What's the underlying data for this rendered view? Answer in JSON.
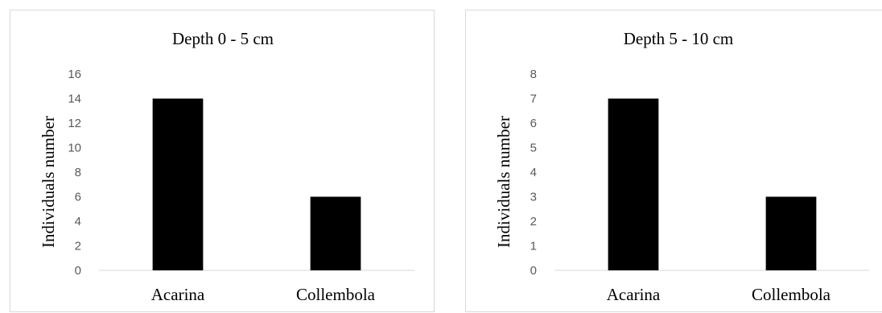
{
  "chart_data": [
    {
      "type": "bar",
      "title": "Depth 0 - 5 cm",
      "xlabel": "",
      "ylabel": "Individuals number",
      "categories": [
        "Acarina",
        "Collembola"
      ],
      "values": [
        14,
        6
      ],
      "ylim": [
        0,
        16
      ],
      "yticks": [
        0,
        2,
        4,
        6,
        8,
        10,
        12,
        14,
        16
      ],
      "grid": false,
      "bar_color": "#000000"
    },
    {
      "type": "bar",
      "title": "Depth 5 - 10 cm",
      "xlabel": "",
      "ylabel": "Individuals number",
      "categories": [
        "Acarina",
        "Collembola"
      ],
      "values": [
        7,
        3
      ],
      "ylim": [
        0,
        8
      ],
      "yticks": [
        0,
        1,
        2,
        3,
        4,
        5,
        6,
        7,
        8
      ],
      "grid": false,
      "bar_color": "#000000"
    }
  ]
}
